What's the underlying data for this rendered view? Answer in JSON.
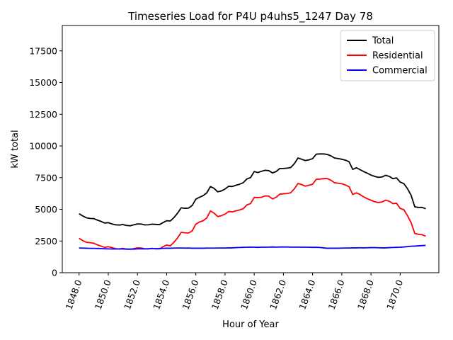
{
  "chart_data": {
    "type": "line",
    "title": "Timeseries Load for P4U p4uhs5_1247  Day 78",
    "xlabel": "Hour of Year",
    "ylabel": "kW total",
    "xlim": [
      1846.85,
      1872.65
    ],
    "ylim": [
      0,
      19500
    ],
    "xticks": [
      1848,
      1850,
      1852,
      1854,
      1856,
      1858,
      1860,
      1862,
      1864,
      1866,
      1868,
      1870
    ],
    "xtick_labels": [
      "1848.0",
      "1850.0",
      "1852.0",
      "1854.0",
      "1856.0",
      "1858.0",
      "1860.0",
      "1862.0",
      "1864.0",
      "1866.0",
      "1868.0",
      "1870.0"
    ],
    "yticks": [
      0,
      2500,
      5000,
      7500,
      10000,
      12500,
      15000,
      17500
    ],
    "ytick_labels": [
      "0",
      "2500",
      "5000",
      "7500",
      "10000",
      "12500",
      "15000",
      "17500"
    ],
    "legend_position": "top-right",
    "x": [
      1848.0,
      1848.25,
      1848.5,
      1848.75,
      1849.0,
      1849.25,
      1849.5,
      1849.75,
      1850.0,
      1850.25,
      1850.5,
      1850.75,
      1851.0,
      1851.25,
      1851.5,
      1851.75,
      1852.0,
      1852.25,
      1852.5,
      1852.75,
      1853.0,
      1853.25,
      1853.5,
      1853.75,
      1854.0,
      1854.25,
      1854.5,
      1854.75,
      1855.0,
      1855.25,
      1855.5,
      1855.75,
      1856.0,
      1856.25,
      1856.5,
      1856.75,
      1857.0,
      1857.25,
      1857.5,
      1857.75,
      1858.0,
      1858.25,
      1858.5,
      1858.75,
      1859.0,
      1859.25,
      1859.5,
      1859.75,
      1860.0,
      1860.25,
      1860.5,
      1860.75,
      1861.0,
      1861.25,
      1861.5,
      1861.75,
      1862.0,
      1862.25,
      1862.5,
      1862.75,
      1863.0,
      1863.25,
      1863.5,
      1863.75,
      1864.0,
      1864.25,
      1864.5,
      1864.75,
      1865.0,
      1865.25,
      1865.5,
      1865.75,
      1866.0,
      1866.25,
      1866.5,
      1866.75,
      1867.0,
      1867.25,
      1867.5,
      1867.75,
      1868.0,
      1868.25,
      1868.5,
      1868.75,
      1869.0,
      1869.25,
      1869.5,
      1869.75,
      1870.0,
      1870.25,
      1870.5,
      1870.75,
      1871.0,
      1871.25,
      1871.5,
      1871.75
    ],
    "series": [
      {
        "name": "Total",
        "color": "#000000",
        "values": [
          4650,
          4480,
          4330,
          4280,
          4270,
          4150,
          4050,
          3920,
          3950,
          3850,
          3780,
          3760,
          3800,
          3730,
          3700,
          3780,
          3850,
          3840,
          3770,
          3780,
          3830,
          3810,
          3790,
          3950,
          4100,
          4080,
          4350,
          4700,
          5120,
          5080,
          5100,
          5300,
          5800,
          5950,
          6080,
          6300,
          6800,
          6650,
          6380,
          6450,
          6600,
          6820,
          6800,
          6900,
          6980,
          7100,
          7400,
          7500,
          7980,
          7900,
          8000,
          8080,
          8050,
          7870,
          7980,
          8220,
          8220,
          8250,
          8300,
          8600,
          9050,
          8950,
          8850,
          8900,
          9000,
          9350,
          9370,
          9370,
          9330,
          9220,
          9050,
          9000,
          8950,
          8880,
          8750,
          8150,
          8280,
          8130,
          7980,
          7850,
          7700,
          7600,
          7520,
          7550,
          7680,
          7600,
          7420,
          7480,
          7150,
          7030,
          6630,
          6110,
          5200,
          5150,
          5150,
          5050
        ]
      },
      {
        "name": "Residential",
        "color": "#ff0000",
        "values": [
          2720,
          2530,
          2400,
          2370,
          2330,
          2200,
          2100,
          2000,
          2050,
          1980,
          1900,
          1870,
          1920,
          1860,
          1850,
          1900,
          1960,
          1950,
          1890,
          1880,
          1920,
          1880,
          1880,
          2050,
          2180,
          2120,
          2400,
          2750,
          3180,
          3150,
          3130,
          3300,
          3830,
          4000,
          4100,
          4320,
          4870,
          4700,
          4430,
          4500,
          4620,
          4830,
          4800,
          4880,
          4950,
          5050,
          5350,
          5450,
          5940,
          5920,
          5960,
          6060,
          6040,
          5820,
          5950,
          6200,
          6220,
          6250,
          6310,
          6620,
          7040,
          6950,
          6830,
          6900,
          6980,
          7370,
          7380,
          7420,
          7430,
          7300,
          7100,
          7060,
          7020,
          6920,
          6780,
          6170,
          6300,
          6170,
          5980,
          5830,
          5720,
          5600,
          5530,
          5580,
          5720,
          5640,
          5450,
          5480,
          5070,
          4980,
          4500,
          3950,
          3100,
          3030,
          3000,
          2880
        ]
      },
      {
        "name": "Commercial",
        "color": "#0000ff",
        "values": [
          1950,
          1940,
          1930,
          1920,
          1920,
          1910,
          1900,
          1890,
          1880,
          1870,
          1870,
          1870,
          1870,
          1860,
          1860,
          1860,
          1880,
          1880,
          1880,
          1890,
          1900,
          1900,
          1900,
          1920,
          1930,
          1930,
          1940,
          1950,
          1950,
          1940,
          1950,
          1930,
          1930,
          1930,
          1930,
          1940,
          1940,
          1940,
          1950,
          1950,
          1950,
          1960,
          1960,
          1980,
          1990,
          2000,
          2010,
          2020,
          2010,
          2000,
          2010,
          2010,
          2020,
          2030,
          2020,
          2030,
          2030,
          2030,
          2020,
          2020,
          2020,
          2010,
          2010,
          2010,
          2000,
          2000,
          1990,
          1960,
          1930,
          1930,
          1930,
          1930,
          1940,
          1950,
          1950,
          1960,
          1960,
          1970,
          1960,
          1970,
          1980,
          1980,
          1970,
          1960,
          1960,
          1980,
          1990,
          2000,
          2010,
          2030,
          2060,
          2090,
          2100,
          2120,
          2140,
          2150
        ]
      }
    ]
  }
}
